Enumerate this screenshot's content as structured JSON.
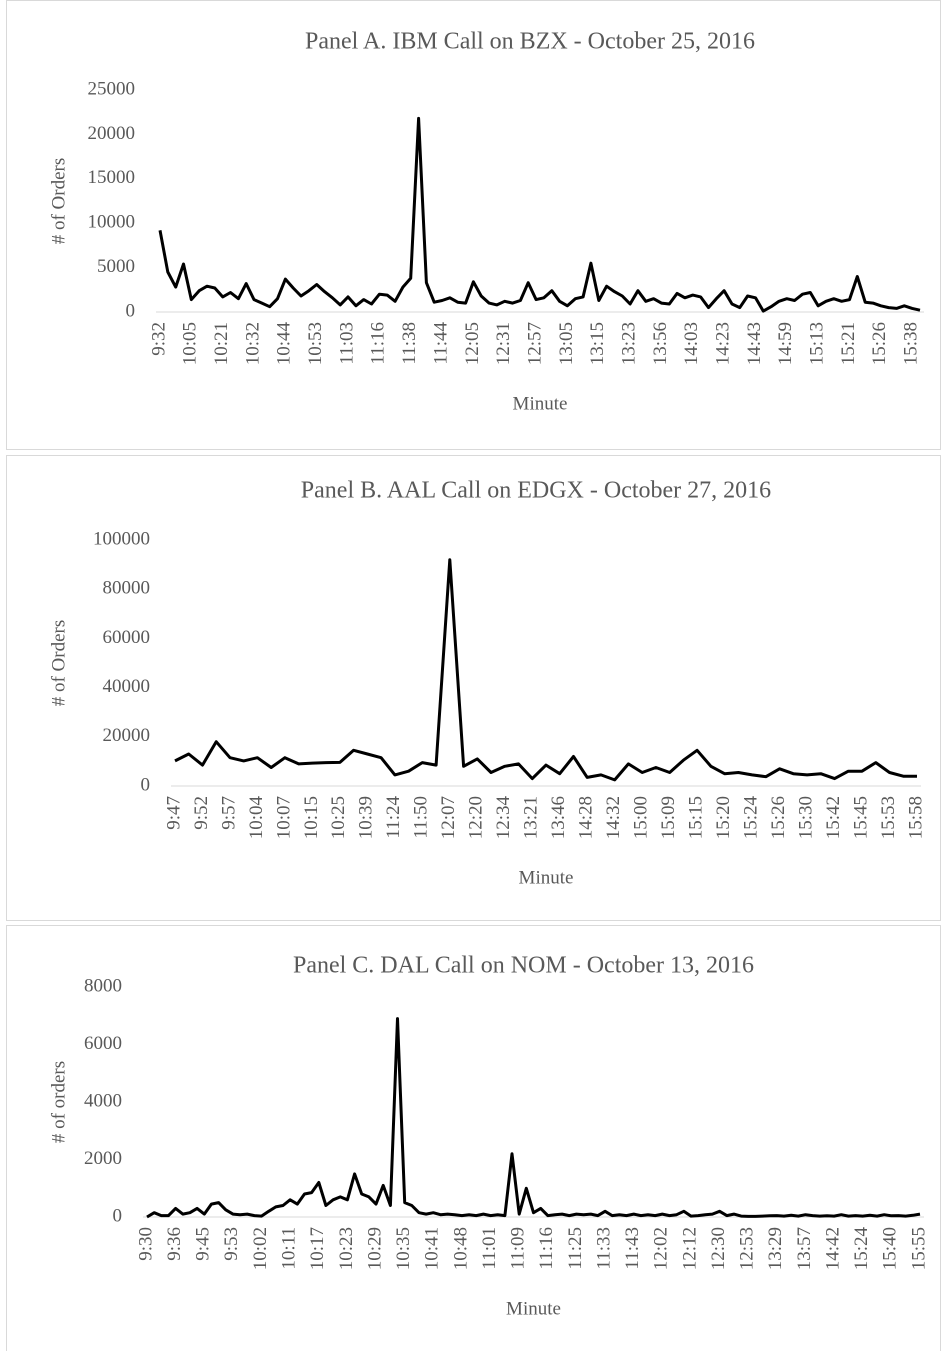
{
  "chart_data": [
    {
      "type": "line",
      "title": "Panel A. IBM Call on BZX - October 25, 2016",
      "x_label": "Minute",
      "y_label": "# of Orders",
      "categories": [
        "9:32",
        null,
        null,
        null,
        "10:05",
        null,
        null,
        null,
        "10:21",
        null,
        null,
        null,
        "10:32",
        null,
        null,
        null,
        "10:44",
        null,
        null,
        null,
        "10:53",
        null,
        null,
        null,
        "11:03",
        null,
        null,
        null,
        "11:16",
        null,
        null,
        null,
        "11:38",
        null,
        null,
        null,
        "11:44",
        null,
        null,
        null,
        "12:05",
        null,
        null,
        null,
        "12:31",
        null,
        null,
        null,
        "12:57",
        null,
        null,
        null,
        "13:05",
        null,
        null,
        null,
        "13:15",
        null,
        null,
        null,
        "13:23",
        null,
        null,
        null,
        "13:56",
        null,
        null,
        null,
        "14:03",
        null,
        null,
        null,
        "14:23",
        null,
        null,
        null,
        "14:43",
        null,
        null,
        null,
        "14:59",
        null,
        null,
        null,
        "15:13",
        null,
        null,
        null,
        "15:21",
        null,
        null,
        null,
        "15:26",
        null,
        null,
        null,
        "15:38",
        null
      ],
      "series": [
        {
          "name": "# of Orders",
          "color": "#000000",
          "values": [
            9200,
            4500,
            2800,
            5400,
            1400,
            2400,
            2900,
            2700,
            1700,
            2200,
            1500,
            3200,
            1400,
            1000,
            600,
            1500,
            3700,
            2700,
            1800,
            2400,
            3100,
            2300,
            1600,
            800,
            1700,
            700,
            1400,
            900,
            2000,
            1900,
            1200,
            2800,
            3800,
            21800,
            3300,
            1100,
            1300,
            1600,
            1100,
            1000,
            3400,
            1800,
            1000,
            800,
            1200,
            1000,
            1300,
            3300,
            1400,
            1600,
            2400,
            1200,
            700,
            1500,
            1700,
            5500,
            1300,
            2900,
            2300,
            1800,
            900,
            2400,
            1200,
            1500,
            1000,
            900,
            2100,
            1600,
            1900,
            1700,
            500,
            1500,
            2400,
            900,
            500,
            1800,
            1600,
            100,
            600,
            1200,
            1500,
            1300,
            2000,
            2200,
            700,
            1200,
            1500,
            1200,
            1400,
            4000,
            1100,
            1000,
            700,
            500,
            400,
            700,
            400,
            200
          ]
        }
      ],
      "ylim": [
        0,
        25000
      ],
      "yticks": [
        0,
        5000,
        10000,
        15000,
        20000,
        25000
      ]
    },
    {
      "type": "line",
      "title": "Panel B. AAL Call on EDGX - October 27, 2016",
      "x_label": "Minute",
      "y_label": "# of Orders",
      "categories": [
        "9:47",
        null,
        "9:52",
        null,
        "9:57",
        null,
        "10:04",
        null,
        "10:07",
        null,
        "10:15",
        null,
        "10:25",
        null,
        "10:39",
        null,
        "11:24",
        null,
        "11:50",
        null,
        "12:07",
        null,
        "12:20",
        null,
        "12:34",
        null,
        "13:21",
        null,
        "13:46",
        null,
        "14:28",
        null,
        "14:32",
        null,
        "15:00",
        null,
        "15:09",
        null,
        "15:15",
        null,
        "15:20",
        null,
        "15:24",
        null,
        "15:26",
        null,
        "15:30",
        null,
        "15:42",
        null,
        "15:45",
        null,
        "15:53",
        null,
        "15:58"
      ],
      "series": [
        {
          "name": "# of Orders",
          "color": "#000000",
          "values": [
            10200,
            13000,
            8500,
            18000,
            11500,
            10200,
            11500,
            7500,
            11500,
            9000,
            9300,
            9500,
            9600,
            14500,
            13000,
            11500,
            4500,
            6000,
            9500,
            8500,
            92000,
            8000,
            11000,
            5500,
            8000,
            9000,
            3000,
            8500,
            5000,
            12000,
            3500,
            4500,
            2500,
            9000,
            5500,
            7500,
            5500,
            10500,
            14500,
            8000,
            5000,
            5500,
            4500,
            3800,
            7000,
            5000,
            4500,
            5000,
            3000,
            6000,
            6000,
            9500,
            5500,
            4000,
            4000
          ]
        }
      ],
      "ylim": [
        0,
        100000
      ],
      "yticks": [
        0,
        20000,
        40000,
        60000,
        80000,
        100000
      ]
    },
    {
      "type": "line",
      "title": "Panel C. DAL Call on NOM - October 13, 2016",
      "x_label": "Minute",
      "y_label": "# of orders",
      "categories": [
        "9:30",
        null,
        null,
        null,
        "9:36",
        null,
        null,
        null,
        "9:45",
        null,
        null,
        null,
        "9:53",
        null,
        null,
        null,
        "10:02",
        null,
        null,
        null,
        "10:11",
        null,
        null,
        null,
        "10:17",
        null,
        null,
        null,
        "10:23",
        null,
        null,
        null,
        "10:29",
        null,
        null,
        null,
        "10:35",
        null,
        null,
        null,
        "10:41",
        null,
        null,
        null,
        "10:48",
        null,
        null,
        null,
        "11:01",
        null,
        null,
        null,
        "11:09",
        null,
        null,
        null,
        "11:16",
        null,
        null,
        null,
        "11:25",
        null,
        null,
        null,
        "11:33",
        null,
        null,
        null,
        "11:43",
        null,
        null,
        null,
        "12:02",
        null,
        null,
        null,
        "12:12",
        null,
        null,
        null,
        "12:30",
        null,
        null,
        null,
        "12:53",
        null,
        null,
        null,
        "13:29",
        null,
        null,
        null,
        "13:57",
        null,
        null,
        null,
        "14:42",
        null,
        null,
        null,
        "15:24",
        null,
        null,
        null,
        "15:40",
        null,
        null,
        null,
        "15:55"
      ],
      "series": [
        {
          "name": "# of orders",
          "color": "#000000",
          "values": [
            0,
            150,
            50,
            50,
            300,
            100,
            150,
            300,
            100,
            450,
            500,
            250,
            100,
            80,
            100,
            50,
            30,
            200,
            350,
            400,
            600,
            450,
            800,
            850,
            1200,
            400,
            600,
            700,
            600,
            1500,
            800,
            700,
            450,
            1100,
            400,
            6900,
            500,
            400,
            150,
            100,
            150,
            80,
            100,
            80,
            50,
            80,
            50,
            100,
            50,
            80,
            50,
            2200,
            100,
            1000,
            150,
            300,
            50,
            80,
            100,
            50,
            100,
            80,
            100,
            50,
            200,
            50,
            80,
            50,
            100,
            50,
            80,
            50,
            100,
            50,
            80,
            200,
            30,
            50,
            80,
            100,
            200,
            50,
            100,
            30,
            20,
            20,
            30,
            40,
            50,
            30,
            60,
            30,
            80,
            50,
            30,
            40,
            30,
            80,
            30,
            50,
            30,
            60,
            30,
            80,
            40,
            50,
            30,
            60,
            100
          ]
        }
      ],
      "ylim": [
        0,
        8000
      ],
      "yticks": [
        0,
        2000,
        4000,
        6000,
        8000
      ]
    }
  ]
}
